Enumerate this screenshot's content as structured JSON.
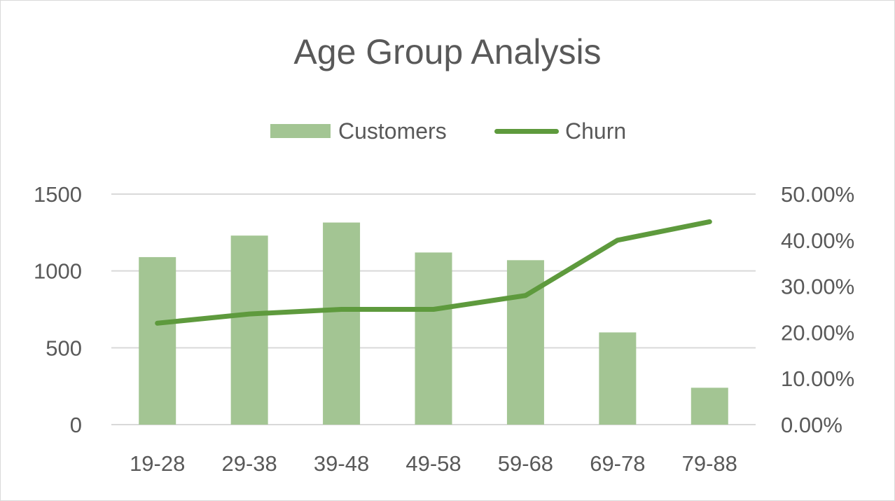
{
  "chart_data": {
    "type": "bar",
    "title": "Age Group Analysis",
    "categories": [
      "19-28",
      "29-38",
      "39-48",
      "49-58",
      "59-68",
      "69-78",
      "79-88"
    ],
    "series": [
      {
        "name": "Customers",
        "type": "bar",
        "axis": "left",
        "values": [
          1090,
          1230,
          1315,
          1120,
          1070,
          600,
          240
        ]
      },
      {
        "name": "Churn",
        "type": "line",
        "axis": "right",
        "values": [
          0.22,
          0.24,
          0.25,
          0.25,
          0.28,
          0.4,
          0.44
        ]
      }
    ],
    "y_left": {
      "min": 0,
      "max": 1500,
      "ticks": [
        "0",
        "500",
        "1000",
        "1500"
      ]
    },
    "y_right": {
      "min": 0,
      "max": 0.5,
      "ticks": [
        "0.00%",
        "10.00%",
        "20.00%",
        "30.00%",
        "40.00%",
        "50.00%"
      ]
    },
    "grid": true,
    "legend_position": "top",
    "colors": {
      "bar": "#a3c593",
      "line": "#5e9a3d",
      "grid": "#d9d9d9",
      "text": "#595959"
    }
  }
}
